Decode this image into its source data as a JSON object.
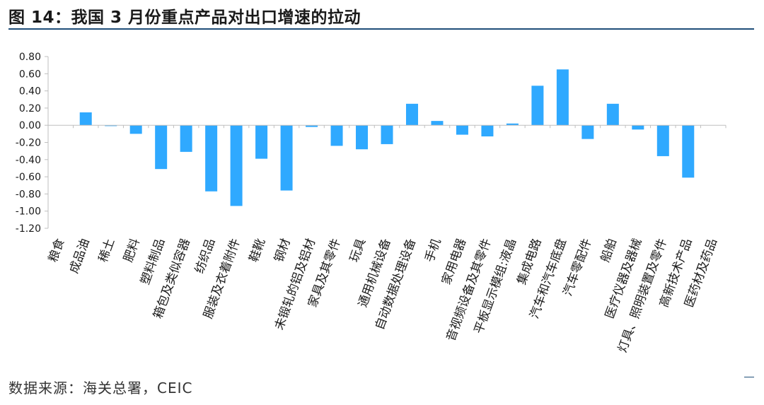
{
  "title": "图 14：我国 3 月份重点产品对出口增速的拉动",
  "source": "数据来源：海关总署，CEIC",
  "colors": {
    "bar": "#2fa9ff",
    "axis": "#bfbfbf",
    "title_rule": "#1f4e79"
  },
  "chart_data": {
    "type": "bar",
    "title": "",
    "xlabel": "",
    "ylabel": "",
    "ylim": [
      -1.2,
      0.8
    ],
    "yticks": [
      0.8,
      0.6,
      0.4,
      0.2,
      0.0,
      -0.2,
      -0.4,
      -0.6,
      -0.8,
      -1.0,
      -1.2
    ],
    "ytick_labels": [
      "0.80",
      "0.60",
      "0.40",
      "0.20",
      "0.00",
      "-0.20",
      "-0.40",
      "-0.60",
      "-0.80",
      "-1.00",
      "-1.20"
    ],
    "grid": false,
    "legend": "none",
    "categories": [
      "粮食",
      "成品油",
      "稀土",
      "肥料",
      "塑料制品",
      "箱包及类似容器",
      "纺织品",
      "服装及衣着附件",
      "鞋靴",
      "钢材",
      "未锻轧的铝及铝材",
      "家具及其零件",
      "玩具",
      "通用机械设备",
      "自动数据处理设备",
      "手机",
      "家用电器",
      "音视频设备及其零件",
      "平板显示模组:液晶",
      "集成电路",
      "汽车和汽车底盘",
      "汽车零配件",
      "船舶",
      "医疗仪器及器械",
      "灯具、照明装置及零件",
      "高新技术产品",
      "医药材及药品"
    ],
    "values": [
      0.0,
      0.15,
      -0.005,
      -0.1,
      -0.51,
      -0.31,
      -0.77,
      -0.94,
      -0.39,
      -0.76,
      -0.02,
      -0.24,
      -0.28,
      -0.22,
      0.25,
      0.05,
      -0.11,
      -0.13,
      0.02,
      0.46,
      0.65,
      -0.16,
      0.25,
      -0.05,
      -0.36,
      -0.61,
      0.0
    ]
  }
}
